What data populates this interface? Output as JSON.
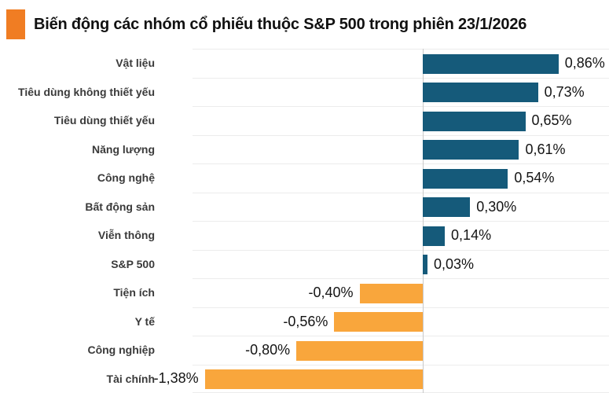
{
  "header": {
    "title": "Biến động các nhóm cổ phiếu thuộc S&P 500 trong phiên 23/1/2026"
  },
  "chart_data": {
    "type": "bar",
    "orientation": "horizontal",
    "title": "Biến động các nhóm cổ phiếu thuộc S&P 500 trong phiên 23/1/2026",
    "unit": "%",
    "decimal_separator": ",",
    "categories": [
      "Vật liệu",
      "Tiêu dùng không thiết yếu",
      "Tiêu dùng thiết yếu",
      "Năng lượng",
      "Công nghệ",
      "Bất động sản",
      "Viễn thông",
      "S&P 500",
      "Tiện ích",
      "Y tế",
      "Công nghiệp",
      "Tài chính"
    ],
    "values": [
      0.86,
      0.73,
      0.65,
      0.61,
      0.54,
      0.3,
      0.14,
      0.03,
      -0.4,
      -0.56,
      -0.8,
      -1.38
    ],
    "value_labels": [
      "0,86%",
      "0,73%",
      "0,65%",
      "0,61%",
      "0,54%",
      "0,30%",
      "0,14%",
      "0,03%",
      "-0,40%",
      "-0,56%",
      "-0,80%",
      "-1,38%"
    ],
    "xlim": [
      -1.458,
      1.18
    ],
    "grid": "horizontal row separators and vertical zero-axis line only",
    "legend": "none",
    "colors": {
      "positive_bar": "#155a7a",
      "negative_bar": "#f9a63c",
      "accent_square": "#f07d23",
      "grid_line": "#ececec",
      "zero_axis": "#c9c9c9",
      "title_text": "#111111",
      "category_text": "#3a3a3a",
      "value_text": "#141414"
    }
  }
}
